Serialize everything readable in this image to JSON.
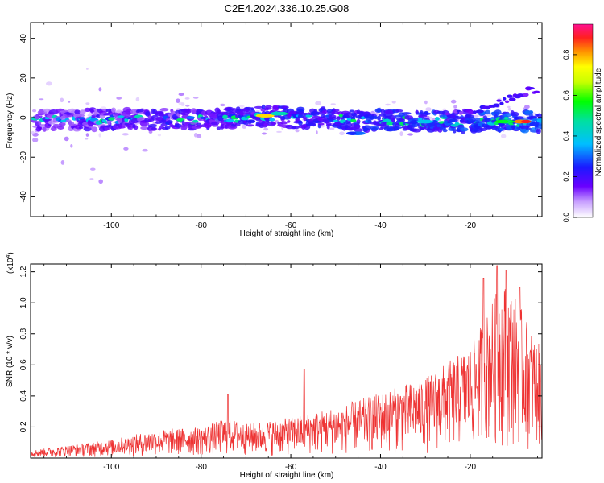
{
  "title": "C2E4.2024.336.10.25.G08",
  "chart_data": [
    {
      "type": "heatmap",
      "xlabel": "Height of straight line (km)",
      "ylabel": "Frequency (Hz)",
      "xlim": [
        -118,
        -4
      ],
      "ylim": [
        -50,
        48
      ],
      "x_ticks": [
        "-100",
        "-80",
        "-60",
        "-40",
        "-20"
      ],
      "x_tick_values": [
        -100,
        -80,
        -60,
        -40,
        -20
      ],
      "y_ticks": [
        "40",
        "20",
        "0",
        "-20",
        "-40"
      ],
      "y_tick_values": [
        40,
        20,
        0,
        -20,
        -40
      ],
      "colorbar": {
        "label": "Normalized spectral amplitude",
        "range": [
          0,
          0.95
        ],
        "ticks": [
          "0.0",
          "0.2",
          "0.4",
          "0.6",
          "0.8"
        ],
        "tick_values": [
          0.0,
          0.2,
          0.4,
          0.6,
          0.8
        ],
        "colormap": "rainbow (white-violet-blue-cyan-green-yellow-orange-red)"
      },
      "band_centre": [
        [
          -117,
          -1
        ],
        [
          -110,
          -1
        ],
        [
          -100,
          -1
        ],
        [
          -90,
          -1
        ],
        [
          -80,
          -1
        ],
        [
          -70,
          0
        ],
        [
          -65,
          1
        ],
        [
          -60,
          0
        ],
        [
          -50,
          0
        ],
        [
          -45,
          -2
        ],
        [
          -40,
          -1
        ],
        [
          -30,
          -2
        ],
        [
          -20,
          -2
        ],
        [
          -10,
          -2
        ],
        [
          -5,
          -2
        ]
      ],
      "secondary_band": [
        [
          -25,
          1
        ],
        [
          -20,
          3
        ],
        [
          -15,
          6
        ],
        [
          -10,
          11
        ],
        [
          -6,
          14
        ]
      ],
      "hotspots": [
        {
          "x": -66,
          "y": 1,
          "v": 0.9
        },
        {
          "x": -62,
          "y": 2,
          "v": 0.55
        },
        {
          "x": -30,
          "y": -2,
          "v": 0.5
        },
        {
          "x": -8,
          "y": -2,
          "v": 0.95
        },
        {
          "x": -12,
          "y": -2,
          "v": 0.7
        },
        {
          "x": -45,
          "y": -8,
          "v": 0.35
        }
      ],
      "grid": false
    },
    {
      "type": "line",
      "xlabel": "Height of straight line (km)",
      "ylabel": "SNR (10 * v/v)",
      "y_scale_label": "(x10",
      "y_scale_exponent": "4",
      "y_scale_close": ")",
      "xlim": [
        -118,
        -4
      ],
      "ylim": [
        0,
        1.25
      ],
      "x_ticks": [
        "-100",
        "-80",
        "-60",
        "-40",
        "-20"
      ],
      "x_tick_values": [
        -100,
        -80,
        -60,
        -40,
        -20
      ],
      "y_ticks": [
        "0.2",
        "0.4",
        "0.6",
        "0.8",
        "1.0",
        "1.2"
      ],
      "y_tick_values": [
        0.2,
        0.4,
        0.6,
        0.8,
        1.0,
        1.2
      ],
      "series": [
        {
          "color": "#ee3333",
          "envelope": [
            [
              -118,
              0.05
            ],
            [
              -110,
              0.08
            ],
            [
              -100,
              0.12
            ],
            [
              -90,
              0.18
            ],
            [
              -80,
              0.2
            ],
            [
              -74,
              0.26
            ],
            [
              -70,
              0.22
            ],
            [
              -60,
              0.26
            ],
            [
              -50,
              0.33
            ],
            [
              -40,
              0.42
            ],
            [
              -30,
              0.52
            ],
            [
              -20,
              0.72
            ],
            [
              -16,
              0.95
            ],
            [
              -13,
              1.15
            ],
            [
              -10,
              1.05
            ],
            [
              -6,
              0.8
            ],
            [
              -4,
              0.7
            ]
          ],
          "peaks": [
            {
              "x": -74,
              "y": 0.41
            },
            {
              "x": -57,
              "y": 0.57
            },
            {
              "x": -17,
              "y": 1.16
            },
            {
              "x": -14,
              "y": 1.24
            },
            {
              "x": -12,
              "y": 1.21
            },
            {
              "x": -9,
              "y": 1.1
            }
          ]
        }
      ],
      "grid": false
    }
  ]
}
